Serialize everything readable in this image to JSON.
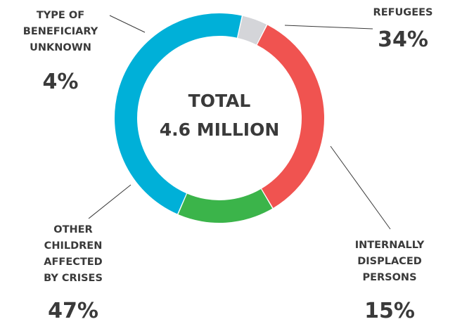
{
  "chart_data": {
    "type": "pie",
    "center": {
      "line1": "TOTAL",
      "line2": "4.6 MILLION"
    },
    "slices": [
      {
        "label_lines": [
          "REFUGEES"
        ],
        "value_text": "34%",
        "value": 34,
        "color": "#f05350"
      },
      {
        "label_lines": [
          "INTERNALLY",
          "DISPLACED",
          "PERSONS"
        ],
        "value_text": "15%",
        "value": 15,
        "color": "#3bb44a"
      },
      {
        "label_lines": [
          "OTHER",
          "CHILDREN",
          "AFFECTED",
          "BY CRISES"
        ],
        "value_text": "47%",
        "value": 47,
        "color": "#00b0d8"
      },
      {
        "label_lines": [
          "TYPE OF",
          "BENEFICIARY",
          "UNKNOWN"
        ],
        "value_text": "4%",
        "value": 4,
        "color": "#d4d5d9"
      }
    ]
  }
}
